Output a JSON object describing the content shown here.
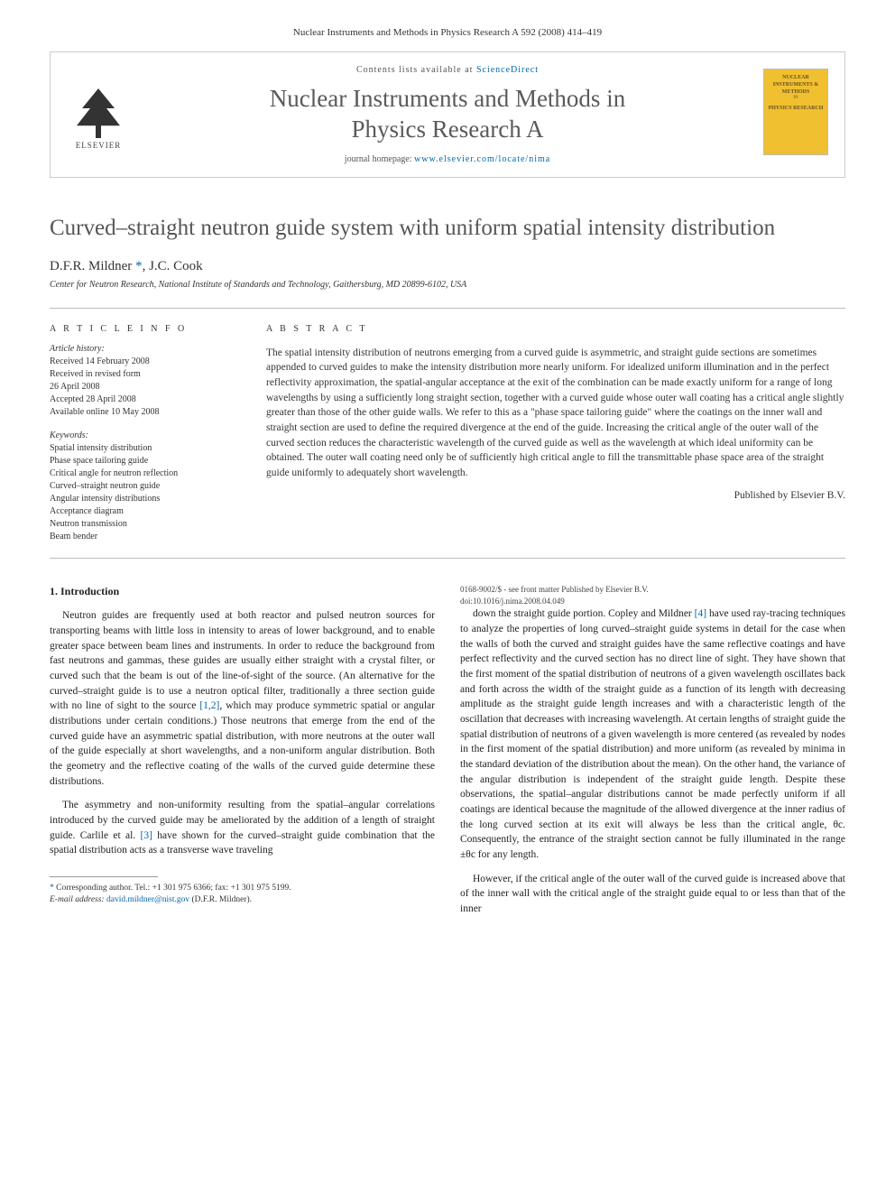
{
  "journal_header": "Nuclear Instruments and Methods in Physics Research A 592 (2008) 414–419",
  "banner": {
    "contents_prefix": "Contents lists available at ",
    "contents_link": "ScienceDirect",
    "journal_title_line1": "Nuclear Instruments and Methods in",
    "journal_title_line2": "Physics Research A",
    "homepage_prefix": "journal homepage: ",
    "homepage_link": "www.elsevier.com/locate/nima",
    "elsevier_label": "ELSEVIER",
    "cover_line1": "NUCLEAR INSTRUMENTS & METHODS",
    "cover_line2": "IN",
    "cover_line3": "PHYSICS RESEARCH"
  },
  "article": {
    "title": "Curved–straight neutron guide system with uniform spatial intensity distribution",
    "authors": "D.F.R. Mildner *, J.C. Cook",
    "affiliation": "Center for Neutron Research, National Institute of Standards and Technology, Gaithersburg, MD 20899-6102, USA"
  },
  "info": {
    "heading_info": "A R T I C L E   I N F O",
    "history_label": "Article history:",
    "received": "Received 14 February 2008",
    "revised1": "Received in revised form",
    "revised2": "26 April 2008",
    "accepted": "Accepted 28 April 2008",
    "online": "Available online 10 May 2008",
    "keywords_label": "Keywords:",
    "kw1": "Spatial intensity distribution",
    "kw2": "Phase space tailoring guide",
    "kw3": "Critical angle for neutron reflection",
    "kw4": "Curved–straight neutron guide",
    "kw5": "Angular intensity distributions",
    "kw6": "Acceptance diagram",
    "kw7": "Neutron transmission",
    "kw8": "Beam bender"
  },
  "abstract": {
    "heading": "A B S T R A C T",
    "text": "The spatial intensity distribution of neutrons emerging from a curved guide is asymmetric, and straight guide sections are sometimes appended to curved guides to make the intensity distribution more nearly uniform. For idealized uniform illumination and in the perfect reflectivity approximation, the spatial-angular acceptance at the exit of the combination can be made exactly uniform for a range of long wavelengths by using a sufficiently long straight section, together with a curved guide whose outer wall coating has a critical angle slightly greater than those of the other guide walls. We refer to this as a \"phase space tailoring guide\" where the coatings on the inner wall and straight section are used to define the required divergence at the end of the guide. Increasing the critical angle of the outer wall of the curved section reduces the characteristic wavelength of the curved guide as well as the wavelength at which ideal uniformity can be obtained. The outer wall coating need only be of sufficiently high critical angle to fill the transmittable phase space area of the straight guide uniformly to adequately short wavelength.",
    "published_by": "Published by Elsevier B.V."
  },
  "body": {
    "section_heading": "1. Introduction",
    "p1": "Neutron guides are frequently used at both reactor and pulsed neutron sources for transporting beams with little loss in intensity to areas of lower background, and to enable greater space between beam lines and instruments. In order to reduce the background from fast neutrons and gammas, these guides are usually either straight with a crystal filter, or curved such that the beam is out of the line-of-sight of the source. (An alternative for the curved–straight guide is to use a neutron optical filter, traditionally a three section guide with no line of sight to the source ",
    "p1_ref12": "[1,2]",
    "p1_cont": ", which may produce symmetric spatial or angular distributions under certain conditions.) Those neutrons that emerge from the end of the curved guide have an asymmetric spatial distribution, with more neutrons at the outer wall of the guide especially at short wavelengths, and a non-uniform angular distribution. Both the geometry and the reflective coating of the walls of the curved guide determine these distributions.",
    "p2": "The asymmetry and non-uniformity resulting from the spatial–angular correlations introduced by the curved guide may be ameliorated by the addition of a length of straight guide. Carlile et al. ",
    "p2_ref3": "[3]",
    "p2_cont": " have shown for the curved–straight guide combination that the spatial distribution acts as a transverse wave traveling",
    "p3_pre": "down the straight guide portion. Copley and Mildner ",
    "p3_ref4": "[4]",
    "p3": " have used ray-tracing techniques to analyze the properties of long curved–straight guide systems in detail for the case when the walls of both the curved and straight guides have the same reflective coatings and have perfect reflectivity and the curved section has no direct line of sight. They have shown that the first moment of the spatial distribution of neutrons of a given wavelength oscillates back and forth across the width of the straight guide as a function of its length with decreasing amplitude as the straight guide length increases and with a characteristic length of the oscillation that decreases with increasing wavelength. At certain lengths of straight guide the spatial distribution of neutrons of a given wavelength is more centered (as revealed by nodes in the first moment of the spatial distribution) and more uniform (as revealed by minima in the standard deviation of the distribution about the mean). On the other hand, the variance of the angular distribution is independent of the straight guide length. Despite these observations, the spatial–angular distributions cannot be made perfectly uniform if all coatings are identical because the magnitude of the allowed divergence at the inner radius of the long curved section at its exit will always be less than the critical angle, θc. Consequently, the entrance of the straight section cannot be fully illuminated in the range ±θc for any length.",
    "p4": "However, if the critical angle of the outer wall of the curved guide is increased above that of the inner wall with the critical angle of the straight guide equal to or less than that of the inner"
  },
  "footnotes": {
    "corr": "* Corresponding author. Tel.: +1 301 975 6366; fax: +1 301 975 5199.",
    "email_label": "E-mail address: ",
    "email": "david.mildner@nist.gov",
    "email_suffix": " (D.F.R. Mildner)."
  },
  "bottom": {
    "line1": "0168-9002/$ - see front matter Published by Elsevier B.V.",
    "line2": "doi:10.1016/j.nima.2008.04.049"
  }
}
